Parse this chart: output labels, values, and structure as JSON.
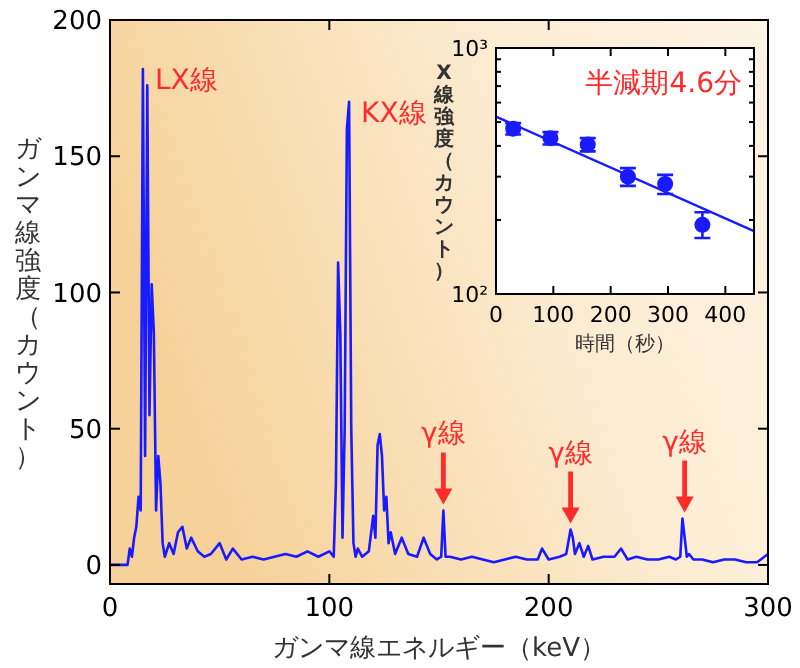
{
  "chart_data": [
    {
      "type": "line",
      "xlabel": "ガンマ線エネルギー（keV）",
      "ylabel": "ガンマ線強度（カウント）",
      "xlim": [
        0,
        300
      ],
      "ylim": [
        -7,
        200
      ],
      "xticks": [
        0,
        100,
        200,
        300
      ],
      "yticks": [
        0,
        50,
        100,
        150,
        200
      ],
      "grid": false,
      "x": [
        0,
        8,
        9,
        10,
        11,
        12,
        13,
        14,
        15,
        16,
        17,
        18,
        19,
        20,
        21,
        22,
        23,
        24,
        25,
        27,
        29,
        31,
        33,
        35,
        37,
        40,
        43,
        46,
        50,
        53,
        56,
        60,
        65,
        70,
        75,
        80,
        85,
        90,
        95,
        100,
        102,
        103,
        104,
        105,
        106,
        107,
        108,
        109,
        110,
        111,
        112,
        113,
        115,
        118,
        120,
        121,
        122,
        123,
        124,
        125,
        126,
        127,
        128,
        130,
        133,
        136,
        140,
        143,
        146,
        149,
        151,
        152,
        153,
        155,
        160,
        165,
        170,
        175,
        180,
        185,
        190,
        195,
        197,
        200,
        205,
        208,
        210,
        211,
        212,
        214,
        216,
        218,
        220,
        225,
        230,
        233,
        236,
        240,
        245,
        250,
        255,
        258,
        260,
        261,
        262,
        263,
        264,
        266,
        270,
        275,
        280,
        285,
        290,
        295,
        300
      ],
      "series": [
        {
          "color": "#1a1aff",
          "values": [
            0,
            0,
            6,
            3,
            10,
            14,
            25,
            20,
            182,
            40,
            176,
            55,
            103,
            85,
            20,
            40,
            30,
            8,
            3,
            8,
            4,
            12,
            14,
            6,
            10,
            5,
            3,
            4,
            8,
            2,
            6,
            2,
            3,
            2,
            3,
            4,
            3,
            5,
            3,
            5,
            3,
            30,
            111,
            85,
            10,
            50,
            160,
            170,
            50,
            8,
            3,
            6,
            3,
            5,
            18,
            10,
            44,
            48,
            40,
            20,
            25,
            8,
            12,
            4,
            10,
            4,
            3,
            10,
            4,
            2,
            3,
            20,
            3,
            3,
            2,
            3,
            2,
            1,
            2,
            3,
            2,
            2,
            6,
            2,
            3,
            4,
            13,
            10,
            4,
            8,
            3,
            7,
            2,
            3,
            3,
            6,
            2,
            3,
            2,
            2,
            3,
            2,
            3,
            17,
            10,
            3,
            4,
            2,
            2,
            1,
            2,
            2,
            1,
            1,
            4
          ]
        }
      ],
      "annotations": [
        {
          "text": "LX線",
          "x": 15,
          "y": 182
        },
        {
          "text": "KX線",
          "x": 109,
          "y": 170
        },
        {
          "text": "γ線",
          "x": 152,
          "y": 20
        },
        {
          "text": "γ線",
          "x": 210,
          "y": 13
        },
        {
          "text": "γ線",
          "x": 262,
          "y": 17
        }
      ]
    },
    {
      "type": "scatter",
      "xlabel": "時間（秒）",
      "ylabel": "X線強度（カウント）",
      "log": true,
      "xlim": [
        0,
        450
      ],
      "ylim": [
        100,
        1000
      ],
      "xticks": [
        0,
        100,
        200,
        300,
        400
      ],
      "yticks": [
        {
          "value": 100,
          "label": "10²"
        },
        {
          "value": 1000,
          "label": "10³"
        }
      ],
      "grid": false,
      "series": [
        {
          "marker": "circle",
          "color": "#1a1aff",
          "x": [
            30,
            95,
            160,
            230,
            295,
            360
          ],
          "values": [
            470,
            430,
            405,
            300,
            280,
            191
          ],
          "errors": [
            25,
            25,
            25,
            25,
            25,
            [
              169,
              215
            ]
          ]
        },
        {
          "type": "line",
          "color": "#1a1aff",
          "x": [
            0,
            450
          ],
          "values": [
            526,
            180
          ]
        }
      ],
      "annotations": [
        "半減期4.6分"
      ]
    }
  ]
}
